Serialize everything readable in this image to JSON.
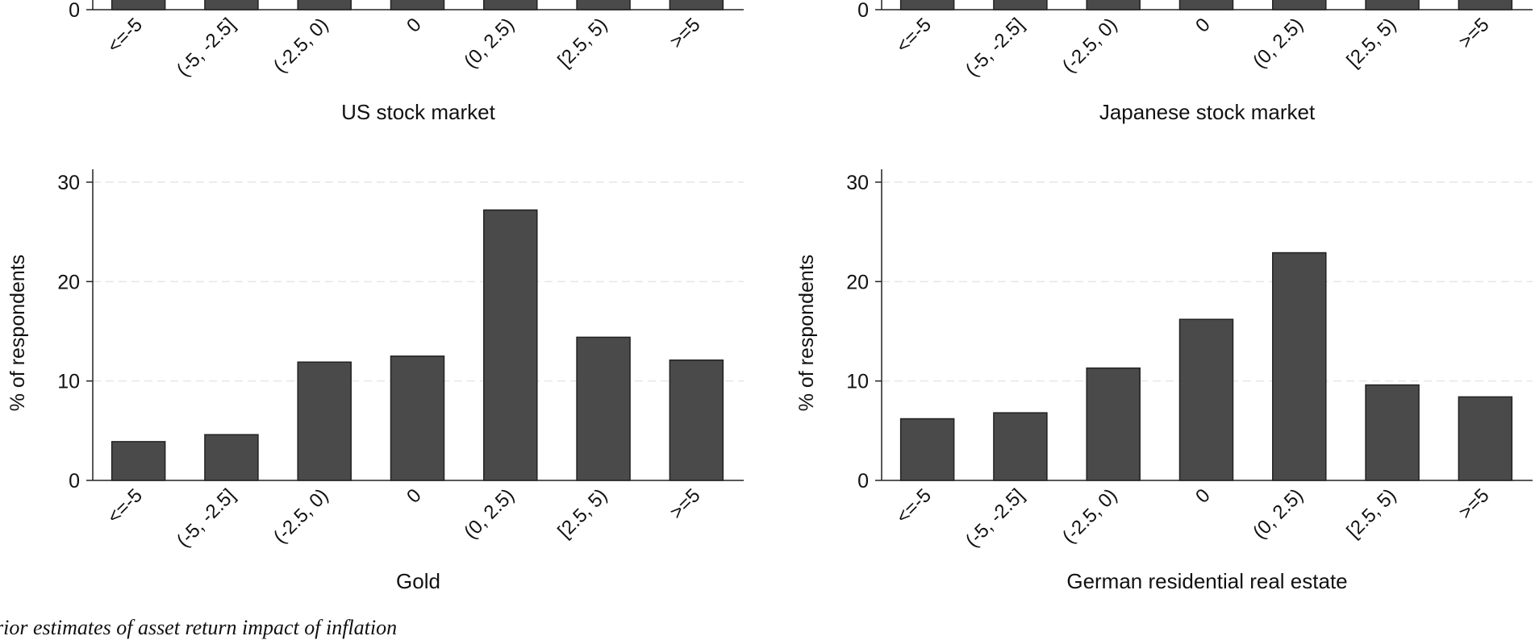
{
  "caption": "rior estimates of asset return impact of inflation",
  "style": {
    "bar_color": "#4a4a4a",
    "bar_edge": "#222222",
    "grid_color": "#e6e6e6",
    "axis_color": "#222222"
  },
  "chart_data": [
    {
      "type": "bar",
      "panel": "top-left",
      "title": "US stock market",
      "categories": [
        "<=-5",
        "(-5, -2.5]",
        "(-2.5, 0)",
        "0",
        "(0, 2.5)",
        "[2.5, 5)",
        ">=5"
      ],
      "values": [
        null,
        null,
        null,
        null,
        null,
        null,
        null
      ],
      "yticks": [
        0
      ],
      "ylabel": "",
      "grid": true
    },
    {
      "type": "bar",
      "panel": "top-right",
      "title": "Japanese stock market",
      "categories": [
        "<=-5",
        "(-5, -2.5]",
        "(-2.5, 0)",
        "0",
        "(0, 2.5)",
        "[2.5, 5)",
        ">=5"
      ],
      "values": [
        null,
        null,
        null,
        null,
        null,
        null,
        null
      ],
      "yticks": [
        0
      ],
      "ylabel": "",
      "grid": true
    },
    {
      "type": "bar",
      "panel": "bottom-left",
      "title": "Gold",
      "categories": [
        "<=-5",
        "(-5, -2.5]",
        "(-2.5, 0)",
        "0",
        "(0, 2.5)",
        "[2.5, 5)",
        ">=5"
      ],
      "values": [
        3.9,
        4.6,
        11.9,
        12.5,
        27.2,
        14.4,
        12.1
      ],
      "ylabel": "% of respondents",
      "ylim": [
        0,
        30
      ],
      "yticks": [
        0,
        10,
        20,
        30
      ],
      "grid": true
    },
    {
      "type": "bar",
      "panel": "bottom-right",
      "title": "German residential real estate",
      "categories": [
        "<=-5",
        "(-5, -2.5]",
        "(-2.5, 0)",
        "0",
        "(0, 2.5)",
        "[2.5, 5)",
        ">=5"
      ],
      "values": [
        6.2,
        6.8,
        11.3,
        16.2,
        22.9,
        9.6,
        8.4
      ],
      "ylabel": "% of respondents",
      "ylim": [
        0,
        30
      ],
      "yticks": [
        0,
        10,
        20,
        30
      ],
      "grid": true
    }
  ]
}
